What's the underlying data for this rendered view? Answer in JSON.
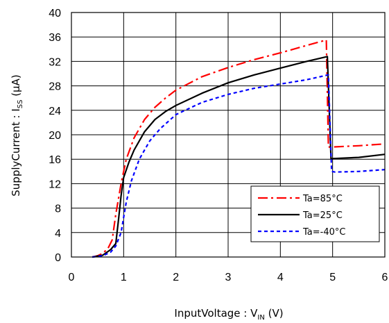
{
  "chart_data": {
    "type": "line",
    "title": "",
    "xlabel": {
      "main": "InputVoltage : V",
      "sub": "IN",
      "unit": " (V)"
    },
    "ylabel": {
      "main": "SupplyCurrent : I",
      "sub": "SS",
      "unit": " (μA)"
    },
    "xlim": [
      0,
      6
    ],
    "ylim": [
      0,
      40
    ],
    "xticks": [
      "0",
      "1",
      "2",
      "3",
      "4",
      "5",
      "6"
    ],
    "yticks": [
      "0",
      "4",
      "8",
      "12",
      "16",
      "20",
      "24",
      "28",
      "32",
      "36",
      "40"
    ],
    "grid": true,
    "legend_position": "lower-right",
    "series": [
      {
        "name": "Ta=85°C",
        "color": "#ff0000",
        "dash": "dashdot",
        "points": [
          [
            0.4,
            0
          ],
          [
            0.5,
            0.2
          ],
          [
            0.6,
            0.6
          ],
          [
            0.7,
            1.4
          ],
          [
            0.78,
            2.8
          ],
          [
            0.85,
            7
          ],
          [
            0.95,
            12
          ],
          [
            1.05,
            16
          ],
          [
            1.2,
            19.5
          ],
          [
            1.4,
            22.5
          ],
          [
            1.6,
            24.5
          ],
          [
            1.8,
            26
          ],
          [
            2,
            27.3
          ],
          [
            2.5,
            29.5
          ],
          [
            3,
            31
          ],
          [
            3.5,
            32.3
          ],
          [
            4,
            33.4
          ],
          [
            4.5,
            34.6
          ],
          [
            4.88,
            35.5
          ],
          [
            4.92,
            18
          ],
          [
            5,
            18
          ],
          [
            5.5,
            18.2
          ],
          [
            6,
            18.5
          ]
        ]
      },
      {
        "name": "Ta=25°C",
        "color": "#000000",
        "dash": "solid",
        "points": [
          [
            0.4,
            0
          ],
          [
            0.6,
            0.3
          ],
          [
            0.75,
            1.2
          ],
          [
            0.85,
            2.2
          ],
          [
            0.9,
            6
          ],
          [
            0.95,
            10
          ],
          [
            1,
            13
          ],
          [
            1.1,
            15.5
          ],
          [
            1.2,
            17.5
          ],
          [
            1.4,
            20.5
          ],
          [
            1.6,
            22.5
          ],
          [
            1.8,
            23.8
          ],
          [
            2,
            24.8
          ],
          [
            2.5,
            26.8
          ],
          [
            3,
            28.5
          ],
          [
            3.5,
            29.8
          ],
          [
            4,
            30.9
          ],
          [
            4.5,
            32
          ],
          [
            4.9,
            32.8
          ],
          [
            4.97,
            16
          ],
          [
            5,
            16.1
          ],
          [
            5.5,
            16.3
          ],
          [
            6,
            16.8
          ]
        ]
      },
      {
        "name": "Ta=-40°C",
        "color": "#0000ff",
        "dash": "dotted",
        "points": [
          [
            0.4,
            0
          ],
          [
            0.6,
            0.2
          ],
          [
            0.75,
            0.8
          ],
          [
            0.85,
            1.8
          ],
          [
            0.95,
            4
          ],
          [
            1.05,
            9
          ],
          [
            1.15,
            12.5
          ],
          [
            1.3,
            16
          ],
          [
            1.5,
            19
          ],
          [
            1.7,
            21
          ],
          [
            2,
            23.3
          ],
          [
            2.5,
            25.3
          ],
          [
            3,
            26.6
          ],
          [
            3.5,
            27.6
          ],
          [
            4,
            28.3
          ],
          [
            4.5,
            29
          ],
          [
            4.92,
            29.8
          ],
          [
            4.98,
            14
          ],
          [
            5.05,
            13.9
          ],
          [
            5.5,
            14
          ],
          [
            6,
            14.3
          ]
        ]
      }
    ]
  }
}
